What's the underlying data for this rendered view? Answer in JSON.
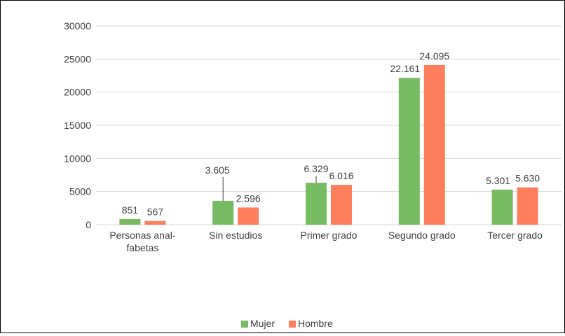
{
  "chart_data": {
    "type": "bar",
    "categories": [
      [
        "Personas anal-",
        "fabetas"
      ],
      [
        "Sin estudios"
      ],
      [
        "Primer grado"
      ],
      [
        "Segundo grado"
      ],
      [
        "Tercer grado"
      ]
    ],
    "series": [
      {
        "name": "Mujer",
        "values": [
          851,
          3605,
          6329,
          22161,
          5301
        ],
        "labels": [
          "851",
          "3.605",
          "6.329",
          "22.161",
          "5.301"
        ],
        "color": "#77BB62"
      },
      {
        "name": "Hombre",
        "values": [
          567,
          2596,
          6016,
          24095,
          5630
        ],
        "labels": [
          "567",
          "2.596",
          "6.016",
          "24.095",
          "5.630"
        ],
        "color": "#FF7F5C"
      }
    ],
    "y_ticks": [
      "0",
      "5000",
      "10000",
      "15000",
      "20000",
      "25000",
      "30000"
    ],
    "ylim": [
      0,
      30000
    ],
    "grid": true,
    "legend": "bottom-center",
    "title": "",
    "xlabel": "",
    "ylabel": ""
  }
}
